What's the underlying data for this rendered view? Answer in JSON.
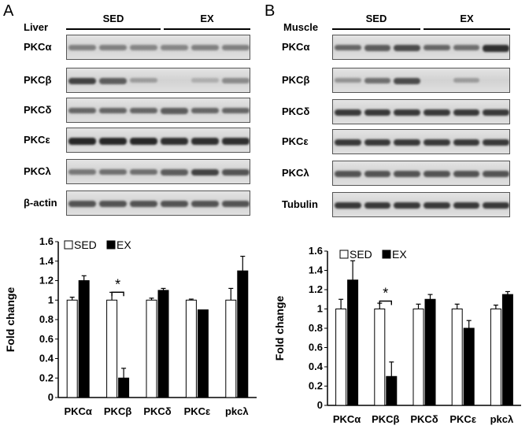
{
  "panelA": {
    "letter": "A",
    "tissue": "Liver",
    "groups": [
      "SED",
      "EX"
    ],
    "blots": [
      {
        "label": "PKCα",
        "intensity": [
          0.45,
          0.45,
          0.42,
          0.42,
          0.45,
          0.45
        ]
      },
      {
        "label": "PKCβ",
        "intensity": [
          0.8,
          0.65,
          0.3,
          0.0,
          0.2,
          0.4
        ]
      },
      {
        "label": "PKCδ",
        "intensity": [
          0.6,
          0.6,
          0.6,
          0.65,
          0.6,
          0.6
        ]
      },
      {
        "label": "PKCε",
        "intensity": [
          0.95,
          0.95,
          0.95,
          0.9,
          0.9,
          0.9
        ]
      },
      {
        "label": "PKCλ",
        "intensity": [
          0.5,
          0.55,
          0.55,
          0.65,
          0.8,
          0.7
        ]
      },
      {
        "label": "β-actin",
        "intensity": [
          0.7,
          0.7,
          0.7,
          0.7,
          0.7,
          0.7
        ]
      }
    ]
  },
  "panelB": {
    "letter": "B",
    "tissue": "Muscle",
    "groups": [
      "SED",
      "EX"
    ],
    "blots": [
      {
        "label": "PKCα",
        "intensity": [
          0.6,
          0.65,
          0.75,
          0.6,
          0.55,
          0.9
        ]
      },
      {
        "label": "PKCβ",
        "intensity": [
          0.35,
          0.55,
          0.75,
          0.0,
          0.3,
          0.0
        ]
      },
      {
        "label": "PKCδ",
        "intensity": [
          0.85,
          0.85,
          0.85,
          0.85,
          0.85,
          0.85
        ]
      },
      {
        "label": "PKCε",
        "intensity": [
          0.85,
          0.85,
          0.85,
          0.85,
          0.85,
          0.85
        ]
      },
      {
        "label": "PKCλ",
        "intensity": [
          0.7,
          0.7,
          0.7,
          0.7,
          0.7,
          0.7
        ]
      },
      {
        "label": "Tubulin",
        "intensity": [
          0.85,
          0.85,
          0.85,
          0.85,
          0.85,
          0.85
        ]
      }
    ]
  },
  "colors": {
    "sed": "#ffffff",
    "ex": "#000000"
  },
  "chart_data": [
    {
      "type": "bar",
      "panel": "A",
      "categories": [
        "PKCα",
        "PKCβ",
        "PKCδ",
        "PKCε",
        "pkcλ"
      ],
      "series": [
        {
          "name": "SED",
          "values": [
            1.0,
            1.0,
            1.0,
            1.0,
            1.0
          ],
          "errors": [
            0.03,
            0.08,
            0.02,
            0.01,
            0.12
          ]
        },
        {
          "name": "EX",
          "values": [
            1.2,
            0.2,
            1.1,
            0.9,
            1.3
          ],
          "errors": [
            0.05,
            0.1,
            0.02,
            0.0,
            0.15
          ]
        }
      ],
      "title": "",
      "xlabel": "",
      "ylabel": "Fold change",
      "ylim": [
        0,
        1.6
      ],
      "yticks": [
        "0",
        "0.2",
        "0.4",
        "0.6",
        "0.8",
        "1",
        "1.2",
        "1.4",
        "1.6"
      ],
      "legend": "top-left",
      "significance": {
        "category_index": 1,
        "label": "*"
      }
    },
    {
      "type": "bar",
      "panel": "B",
      "categories": [
        "PKCα",
        "PKCβ",
        "PKCδ",
        "PKCε",
        "pkcλ"
      ],
      "series": [
        {
          "name": "SED",
          "values": [
            1.0,
            1.0,
            1.0,
            1.0,
            1.0
          ],
          "errors": [
            0.1,
            0.06,
            0.05,
            0.05,
            0.04
          ]
        },
        {
          "name": "EX",
          "values": [
            1.3,
            0.3,
            1.1,
            0.8,
            1.15
          ],
          "errors": [
            0.2,
            0.15,
            0.05,
            0.08,
            0.03
          ]
        }
      ],
      "title": "",
      "xlabel": "",
      "ylabel": "Fold change",
      "ylim": [
        0,
        1.6
      ],
      "yticks": [
        "0",
        "0.2",
        "0.4",
        "0.6",
        "0.8",
        "1",
        "1.2",
        "1.4",
        "1.6"
      ],
      "legend": "top-left",
      "significance": {
        "category_index": 1,
        "label": "*"
      }
    }
  ]
}
